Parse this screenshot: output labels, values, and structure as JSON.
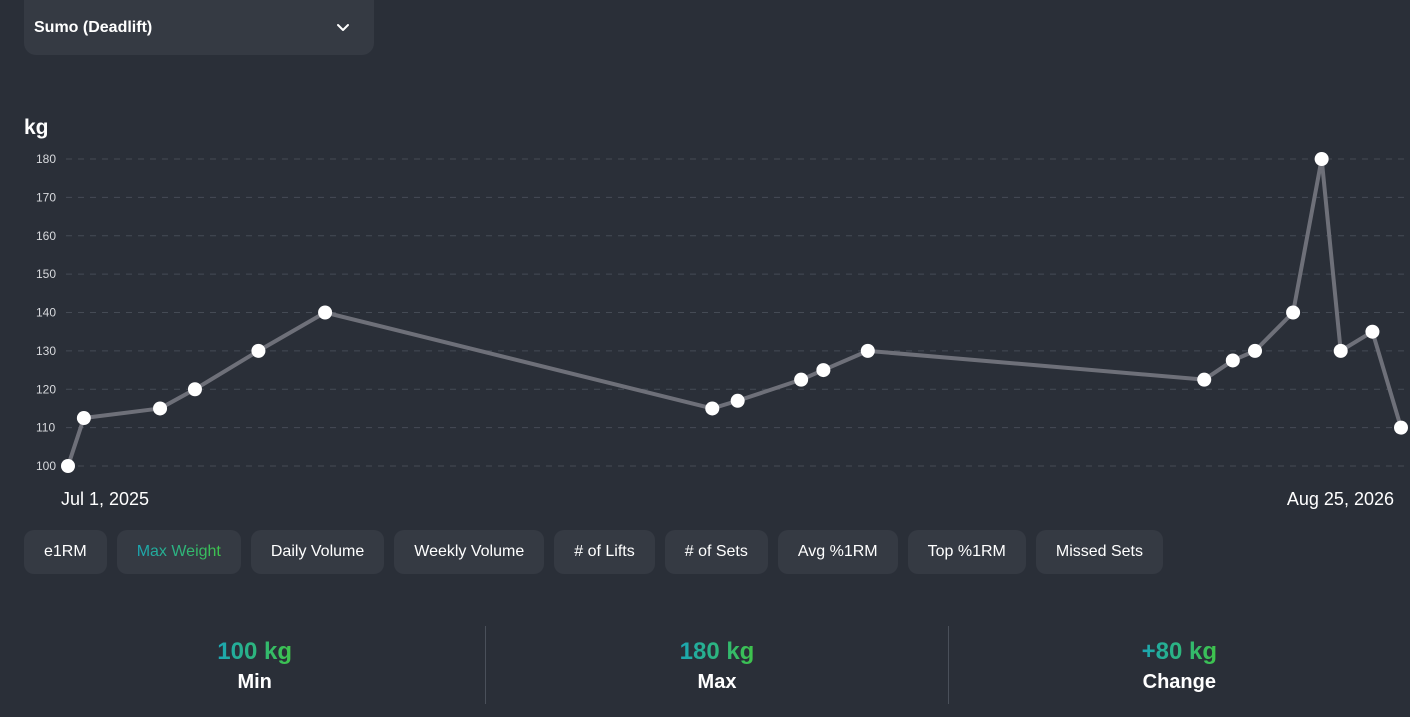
{
  "exercise_select": {
    "selected": "Sumo (Deadlift)"
  },
  "chart": {
    "unit_label": "kg",
    "x_start_label": "Jul 1, 2025",
    "x_end_label": "Aug 25, 2026",
    "line_color": "#6e7079",
    "point_color": "#ffffff"
  },
  "chart_data": {
    "type": "line",
    "xlabel": "",
    "ylabel": "kg",
    "x_range": [
      "2025-07-01",
      "2026-08-25"
    ],
    "ylim": [
      100,
      180
    ],
    "y_ticks": [
      100,
      110,
      120,
      130,
      140,
      150,
      160,
      170,
      180
    ],
    "grid": true,
    "series": [
      {
        "x": [
          "2025-07-01",
          "2025-07-06",
          "2025-07-30",
          "2025-08-10",
          "2025-08-30",
          "2025-09-20",
          "2026-01-20",
          "2026-01-28",
          "2026-02-17",
          "2026-02-24",
          "2026-03-10",
          "2026-06-24",
          "2026-07-03",
          "2026-07-10",
          "2026-07-22",
          "2026-07-31",
          "2026-08-06",
          "2026-08-16",
          "2026-08-25"
        ],
        "y": [
          100,
          112.5,
          115,
          120,
          130,
          140,
          115,
          117,
          122.5,
          125,
          130,
          122.5,
          127.5,
          130,
          140,
          180,
          130,
          135,
          110
        ]
      }
    ]
  },
  "metrics": [
    {
      "label": "e1RM",
      "active": false
    },
    {
      "label": "Max Weight",
      "active": true
    },
    {
      "label": "Daily Volume",
      "active": false
    },
    {
      "label": "Weekly Volume",
      "active": false
    },
    {
      "label": "# of Lifts",
      "active": false
    },
    {
      "label": "# of Sets",
      "active": false
    },
    {
      "label": "Avg %1RM",
      "active": false
    },
    {
      "label": "Top %1RM",
      "active": false
    },
    {
      "label": "Missed Sets",
      "active": false
    }
  ],
  "stats": [
    {
      "value": "100 kg",
      "label": "Min"
    },
    {
      "value": "180 kg",
      "label": "Max"
    },
    {
      "value": "+80 kg",
      "label": "Change"
    }
  ]
}
